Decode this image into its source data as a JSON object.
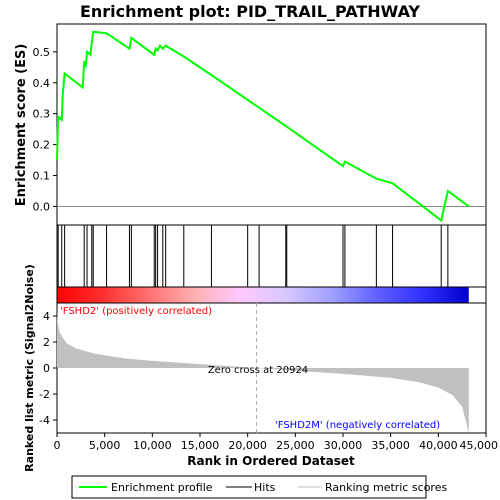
{
  "chart_data": {
    "type": "line",
    "title": "Enrichment plot: PID_TRAIL_PATHWAY",
    "top_panel": {
      "ylabel": "Enrichment score (ES)",
      "ylim": [
        -0.06,
        0.59
      ],
      "yticks": [
        0.0,
        0.1,
        0.2,
        0.3,
        0.4,
        0.5
      ],
      "ytick_labels": [
        "0.0",
        "0.1",
        "0.2",
        "0.3",
        "0.4",
        "0.5"
      ],
      "series": [
        {
          "name": "Enrichment profile",
          "color": "#00ff00",
          "x": [
            0,
            120,
            500,
            600,
            800,
            2700,
            2850,
            3000,
            3150,
            3500,
            3650,
            3800,
            5200,
            7600,
            7800,
            10200,
            10350,
            10550,
            10800,
            11100,
            11400,
            13300,
            16200,
            24000,
            30000,
            30200,
            33500,
            35200,
            40300,
            40700,
            41000,
            43200
          ],
          "y": [
            0.15,
            0.29,
            0.28,
            0.36,
            0.43,
            0.385,
            0.47,
            0.45,
            0.5,
            0.49,
            0.53,
            0.565,
            0.56,
            0.51,
            0.545,
            0.49,
            0.51,
            0.505,
            0.52,
            0.51,
            0.52,
            0.485,
            0.425,
            0.26,
            0.13,
            0.145,
            0.09,
            0.075,
            -0.045,
            0.01,
            0.05,
            0.0
          ]
        }
      ]
    },
    "hits": {
      "name": "Hits",
      "x": [
        120,
        500,
        800,
        2850,
        3150,
        3650,
        3800,
        5200,
        7600,
        7800,
        10200,
        10350,
        10550,
        11100,
        11400,
        13300,
        16200,
        20000,
        21200,
        24000,
        24100,
        30000,
        30200,
        33500,
        35200,
        40300,
        41000
      ]
    },
    "colorbar": {
      "stops": [
        "#ff0000",
        "#ff3030",
        "#ff7070",
        "#ffb0b0",
        "#ffc8ff",
        "#d8c8ff",
        "#a0a0ff",
        "#6060ff",
        "#3030ff",
        "#0000cc"
      ]
    },
    "bottom_panel": {
      "ylabel": "Ranked list metric (Signal2Noise)",
      "xlabel": "Rank in Ordered Dataset",
      "xlim": [
        0,
        45000
      ],
      "xticks": [
        0,
        5000,
        10000,
        15000,
        20000,
        25000,
        30000,
        35000,
        40000,
        45000
      ],
      "xtick_labels": [
        "0",
        "5,000",
        "10,000",
        "15,000",
        "20,000",
        "25,000",
        "30,000",
        "35,000",
        "40,000",
        "45,000"
      ],
      "ylim": [
        -5,
        5
      ],
      "yticks": [
        -4,
        -2,
        0,
        2,
        4
      ],
      "ytick_labels": [
        "-4",
        "-2",
        "0",
        "2",
        "4"
      ],
      "metric_profile": {
        "x": [
          0,
          50,
          300,
          1000,
          2000,
          4000,
          7000,
          10000,
          15000,
          20924,
          25000,
          30000,
          35000,
          38000,
          40000,
          41500,
          42500,
          43000,
          43200
        ],
        "y": [
          4.3,
          3.6,
          2.7,
          1.9,
          1.5,
          1.1,
          0.75,
          0.55,
          0.3,
          0.0,
          -0.2,
          -0.45,
          -0.75,
          -1.1,
          -1.5,
          -2.1,
          -3.0,
          -4.4,
          -5.0
        ]
      },
      "zero_cross_label": "Zero cross at 20924",
      "zero_cross_x": 20924,
      "positive_label": "'FSHD2' (positively correlated)",
      "negative_label": "'FSHD2M' (negatively correlated)"
    },
    "legend": {
      "items": [
        "Enrichment profile",
        "Hits",
        "Ranking metric scores"
      ],
      "colors": [
        "#00ff00",
        "#000000",
        "#c0c0c0"
      ]
    }
  }
}
